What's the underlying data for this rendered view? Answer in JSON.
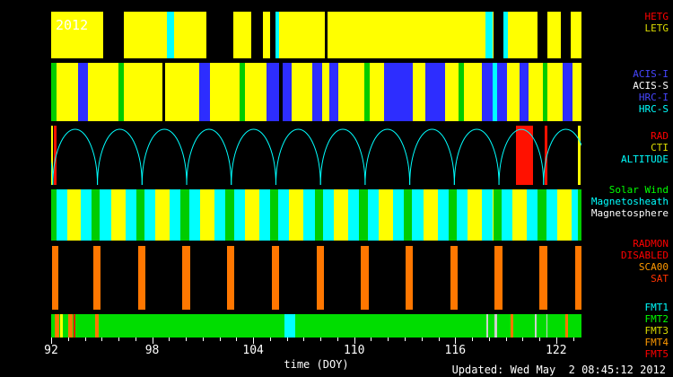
{
  "title": {
    "year": "2012",
    "updated": "Updated: Wed May  2 08:45:12 2012"
  },
  "axis": {
    "xlabel": "time (DOY)"
  },
  "legend": {
    "groups": [
      {
        "id": "gratings",
        "items": [
          {
            "text": "HETG",
            "color": "#ff0000"
          },
          {
            "text": "LETG",
            "color": "#dddd00"
          }
        ]
      },
      {
        "id": "instruments",
        "items": [
          {
            "text": "ACIS-I",
            "color": "#4646ff"
          },
          {
            "text": "ACIS-S",
            "color": "#ffffff"
          },
          {
            "text": "HRC-I",
            "color": "#4646ff"
          },
          {
            "text": "HRC-S",
            "color": "#00ffff"
          }
        ]
      },
      {
        "id": "radiation",
        "items": [
          {
            "text": "RAD",
            "color": "#ff0000"
          },
          {
            "text": "CTI",
            "color": "#dddd00"
          },
          {
            "text": "ALTITUDE",
            "color": "#00ffff"
          }
        ]
      },
      {
        "id": "solarwind",
        "items": [
          {
            "text": "Solar Wind",
            "color": "#00ff00"
          },
          {
            "text": "Magnetosheath",
            "color": "#00ffff"
          },
          {
            "text": "Magnetosphere",
            "color": "#ffffff"
          }
        ]
      },
      {
        "id": "radmon",
        "items": [
          {
            "text": "RADMON",
            "color": "#ff0000"
          },
          {
            "text": "DISABLED",
            "color": "#ff0000"
          },
          {
            "text": "SCA00",
            "color": "#ff9900"
          },
          {
            "text": "SAT",
            "color": "#ff3300"
          }
        ]
      },
      {
        "id": "fmt",
        "items": [
          {
            "text": "FMT1",
            "color": "#00ffff"
          },
          {
            "text": "FMT2",
            "color": "#00ff00"
          },
          {
            "text": "FMT3",
            "color": "#dddd00"
          },
          {
            "text": "FMT4",
            "color": "#ff9900"
          },
          {
            "text": "FMT5",
            "color": "#ff0000"
          }
        ]
      }
    ]
  },
  "chart_data": {
    "type": "timeline",
    "title": "Chandra weekly status timeline, year 2012",
    "x_range": [
      92,
      123.5
    ],
    "x_ticks": [
      92,
      98,
      104,
      110,
      116,
      122
    ],
    "minor_tick_step": 1,
    "xlabel": "time (DOY)",
    "palette": {
      "y": "#ffff00",
      "c": "#00ffff",
      "b": "#2d2dff",
      "g": "#00cc00",
      "k": "#000000",
      "o": "#ff7700",
      "r": "#ff1100",
      "w": "#cfcfcf",
      "e": "#00dd00"
    },
    "bands": [
      {
        "id": "gratings",
        "bg": "y",
        "segments": [
          {
            "s": 95.1,
            "e": 96.3,
            "c": "k"
          },
          {
            "s": 98.9,
            "e": 99.3,
            "c": "c"
          },
          {
            "s": 101.2,
            "e": 102.8,
            "c": "k"
          },
          {
            "s": 103.9,
            "e": 104.6,
            "c": "k"
          },
          {
            "s": 105.0,
            "e": 105.35,
            "c": "k"
          },
          {
            "s": 105.35,
            "e": 105.55,
            "c": "c"
          },
          {
            "s": 108.25,
            "e": 108.4,
            "c": "k"
          },
          {
            "s": 117.8,
            "e": 118.25,
            "c": "c"
          },
          {
            "s": 118.25,
            "e": 118.85,
            "c": "k"
          },
          {
            "s": 118.85,
            "e": 119.15,
            "c": "c"
          },
          {
            "s": 120.9,
            "e": 121.5,
            "c": "k"
          },
          {
            "s": 122.3,
            "e": 122.85,
            "c": "k"
          }
        ]
      },
      {
        "id": "instruments",
        "bg": "y",
        "segments": [
          {
            "s": 92.0,
            "e": 92.3,
            "c": "g"
          },
          {
            "s": 93.6,
            "e": 94.2,
            "c": "b"
          },
          {
            "s": 96.0,
            "e": 96.3,
            "c": "g"
          },
          {
            "s": 98.6,
            "e": 98.78,
            "c": "k"
          },
          {
            "s": 100.8,
            "e": 101.45,
            "c": "b"
          },
          {
            "s": 103.2,
            "e": 103.5,
            "c": "g"
          },
          {
            "s": 104.8,
            "e": 105.55,
            "c": "b"
          },
          {
            "s": 105.55,
            "e": 105.75,
            "c": "k"
          },
          {
            "s": 105.75,
            "e": 106.3,
            "c": "b"
          },
          {
            "s": 107.5,
            "e": 108.1,
            "c": "b"
          },
          {
            "s": 108.5,
            "e": 109.05,
            "c": "b"
          },
          {
            "s": 110.6,
            "e": 110.9,
            "c": "g"
          },
          {
            "s": 111.8,
            "e": 113.5,
            "c": "b"
          },
          {
            "s": 114.2,
            "e": 115.4,
            "c": "b"
          },
          {
            "s": 116.2,
            "e": 116.5,
            "c": "g"
          },
          {
            "s": 117.6,
            "e": 118.2,
            "c": "b"
          },
          {
            "s": 118.2,
            "e": 118.5,
            "c": "c"
          },
          {
            "s": 118.5,
            "e": 119.05,
            "c": "b"
          },
          {
            "s": 119.8,
            "e": 120.35,
            "c": "b"
          },
          {
            "s": 121.2,
            "e": 121.5,
            "c": "g"
          },
          {
            "s": 122.4,
            "e": 122.95,
            "c": "b"
          }
        ]
      },
      {
        "id": "radiation",
        "bg": "k",
        "arc_color": "c",
        "arcs": [
          [
            89.45,
            92.1
          ],
          [
            92.1,
            94.75
          ],
          [
            94.75,
            97.4
          ],
          [
            97.4,
            100.05
          ],
          [
            100.05,
            102.7
          ],
          [
            102.7,
            105.35
          ],
          [
            105.35,
            108.0
          ],
          [
            108.0,
            110.65
          ],
          [
            110.65,
            113.3
          ],
          [
            113.3,
            115.95
          ],
          [
            115.95,
            118.6
          ],
          [
            118.6,
            121.25
          ],
          [
            121.25,
            123.9
          ]
        ],
        "segments": [
          {
            "s": 92.0,
            "e": 92.1,
            "c": "y"
          },
          {
            "s": 92.15,
            "e": 92.3,
            "c": "r"
          },
          {
            "s": 119.6,
            "e": 120.6,
            "c": "r"
          },
          {
            "s": 121.3,
            "e": 121.45,
            "c": "r"
          },
          {
            "s": 123.3,
            "e": 123.45,
            "c": "y"
          }
        ]
      },
      {
        "id": "solarwind",
        "bg": "y",
        "segments": [
          {
            "s": 92.0,
            "e": 92.3,
            "c": "g"
          },
          {
            "s": 92.3,
            "e": 92.95,
            "c": "c"
          },
          {
            "s": 93.75,
            "e": 94.4,
            "c": "c"
          },
          {
            "s": 94.4,
            "e": 94.9,
            "c": "g"
          },
          {
            "s": 94.9,
            "e": 95.55,
            "c": "c"
          },
          {
            "s": 96.4,
            "e": 97.05,
            "c": "c"
          },
          {
            "s": 97.05,
            "e": 97.55,
            "c": "g"
          },
          {
            "s": 97.55,
            "e": 98.2,
            "c": "c"
          },
          {
            "s": 99.05,
            "e": 99.7,
            "c": "c"
          },
          {
            "s": 99.7,
            "e": 100.2,
            "c": "g"
          },
          {
            "s": 100.2,
            "e": 100.85,
            "c": "c"
          },
          {
            "s": 101.7,
            "e": 102.35,
            "c": "c"
          },
          {
            "s": 102.35,
            "e": 102.85,
            "c": "g"
          },
          {
            "s": 102.85,
            "e": 103.5,
            "c": "c"
          },
          {
            "s": 104.35,
            "e": 105.0,
            "c": "c"
          },
          {
            "s": 105.0,
            "e": 105.5,
            "c": "g"
          },
          {
            "s": 105.5,
            "e": 106.15,
            "c": "c"
          },
          {
            "s": 107.0,
            "e": 107.65,
            "c": "c"
          },
          {
            "s": 107.65,
            "e": 108.15,
            "c": "g"
          },
          {
            "s": 108.15,
            "e": 108.8,
            "c": "c"
          },
          {
            "s": 109.65,
            "e": 110.3,
            "c": "c"
          },
          {
            "s": 110.3,
            "e": 110.8,
            "c": "g"
          },
          {
            "s": 110.8,
            "e": 111.45,
            "c": "c"
          },
          {
            "s": 112.3,
            "e": 112.95,
            "c": "c"
          },
          {
            "s": 112.95,
            "e": 113.45,
            "c": "g"
          },
          {
            "s": 113.45,
            "e": 114.1,
            "c": "c"
          },
          {
            "s": 114.95,
            "e": 115.6,
            "c": "c"
          },
          {
            "s": 115.6,
            "e": 116.1,
            "c": "g"
          },
          {
            "s": 116.1,
            "e": 116.75,
            "c": "c"
          },
          {
            "s": 117.6,
            "e": 118.25,
            "c": "c"
          },
          {
            "s": 118.25,
            "e": 118.75,
            "c": "g"
          },
          {
            "s": 118.75,
            "e": 119.4,
            "c": "c"
          },
          {
            "s": 120.25,
            "e": 120.9,
            "c": "c"
          },
          {
            "s": 120.9,
            "e": 121.4,
            "c": "g"
          },
          {
            "s": 121.4,
            "e": 122.05,
            "c": "c"
          },
          {
            "s": 122.9,
            "e": 123.3,
            "c": "c"
          },
          {
            "s": 123.3,
            "e": 123.5,
            "c": "g"
          }
        ]
      },
      {
        "id": "radmon",
        "bg": "k",
        "segments": [
          {
            "s": 92.05,
            "e": 92.45,
            "c": "o"
          },
          {
            "s": 94.5,
            "e": 94.95,
            "c": "o"
          },
          {
            "s": 97.15,
            "e": 97.6,
            "c": "o"
          },
          {
            "s": 99.8,
            "e": 100.25,
            "c": "o"
          },
          {
            "s": 102.45,
            "e": 102.9,
            "c": "o"
          },
          {
            "s": 105.1,
            "e": 105.55,
            "c": "o"
          },
          {
            "s": 107.75,
            "e": 108.2,
            "c": "o"
          },
          {
            "s": 110.4,
            "e": 110.85,
            "c": "o"
          },
          {
            "s": 113.05,
            "e": 113.5,
            "c": "o"
          },
          {
            "s": 115.7,
            "e": 116.15,
            "c": "o"
          },
          {
            "s": 118.35,
            "e": 118.8,
            "c": "o"
          },
          {
            "s": 121.0,
            "e": 121.45,
            "c": "o"
          },
          {
            "s": 123.15,
            "e": 123.5,
            "c": "o"
          }
        ]
      },
      {
        "id": "fmt",
        "bg": "e",
        "segments": [
          {
            "s": 92.2,
            "e": 92.5,
            "c": "o"
          },
          {
            "s": 92.55,
            "e": 92.7,
            "c": "y"
          },
          {
            "s": 93.0,
            "e": 93.3,
            "c": "o"
          },
          {
            "s": 93.35,
            "e": 93.45,
            "c": "r"
          },
          {
            "s": 94.6,
            "e": 94.8,
            "c": "o"
          },
          {
            "s": 105.85,
            "e": 106.5,
            "c": "c"
          },
          {
            "s": 117.85,
            "e": 117.95,
            "c": "w"
          },
          {
            "s": 118.35,
            "e": 118.5,
            "c": "w"
          },
          {
            "s": 119.3,
            "e": 119.45,
            "c": "o"
          },
          {
            "s": 120.75,
            "e": 120.85,
            "c": "w"
          },
          {
            "s": 121.4,
            "e": 121.5,
            "c": "w"
          },
          {
            "s": 122.55,
            "e": 122.7,
            "c": "o"
          }
        ]
      }
    ]
  }
}
